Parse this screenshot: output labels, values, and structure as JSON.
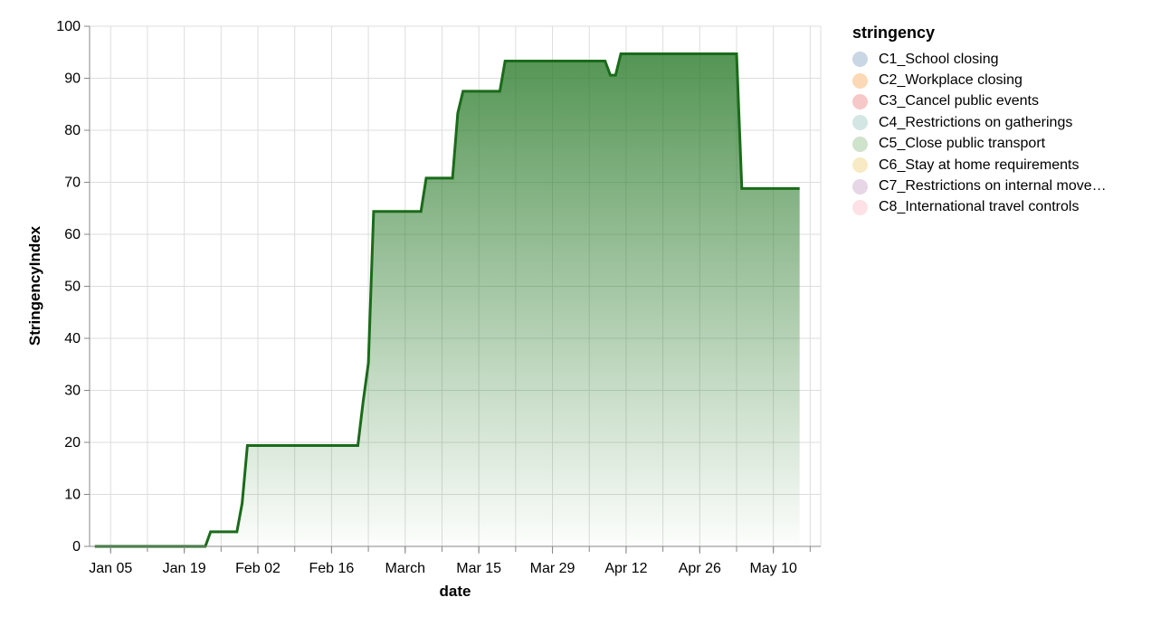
{
  "chart_data": {
    "type": "area",
    "xlabel": "date",
    "ylabel": "StringencyIndex",
    "ylim": [
      0,
      100
    ],
    "y_ticks": [
      0,
      10,
      20,
      30,
      40,
      50,
      60,
      70,
      80,
      90,
      100
    ],
    "x_range": [
      "2020-01-01",
      "2020-05-19"
    ],
    "x_ticks": [
      {
        "date": "2020-01-05",
        "label": "Jan 05"
      },
      {
        "date": "2020-01-19",
        "label": "Jan 19"
      },
      {
        "date": "2020-02-02",
        "label": "Feb 02"
      },
      {
        "date": "2020-02-16",
        "label": "Feb 16"
      },
      {
        "date": "2020-03-01",
        "label": "March"
      },
      {
        "date": "2020-03-15",
        "label": "Mar 15"
      },
      {
        "date": "2020-03-29",
        "label": "Mar 29"
      },
      {
        "date": "2020-04-12",
        "label": "Apr 12"
      },
      {
        "date": "2020-04-26",
        "label": "Apr 26"
      },
      {
        "date": "2020-05-10",
        "label": "May 10"
      }
    ],
    "grid": true,
    "line_color": "#1a6b1a",
    "fill_color": "#2e8b2e",
    "legend_position": "right",
    "series": [
      {
        "points": [
          [
            "2020-01-02",
            0
          ],
          [
            "2020-01-23",
            0
          ],
          [
            "2020-01-24",
            2.8
          ],
          [
            "2020-01-29",
            2.8
          ],
          [
            "2020-01-30",
            8.3
          ],
          [
            "2020-01-31",
            19.4
          ],
          [
            "2020-02-21",
            19.4
          ],
          [
            "2020-02-22",
            27.8
          ],
          [
            "2020-02-23",
            35.2
          ],
          [
            "2020-02-24",
            64.4
          ],
          [
            "2020-03-04",
            64.4
          ],
          [
            "2020-03-05",
            70.8
          ],
          [
            "2020-03-10",
            70.8
          ],
          [
            "2020-03-11",
            83.3
          ],
          [
            "2020-03-12",
            87.5
          ],
          [
            "2020-03-19",
            87.5
          ],
          [
            "2020-03-20",
            93.3
          ],
          [
            "2020-04-08",
            93.3
          ],
          [
            "2020-04-09",
            90.6
          ],
          [
            "2020-04-10",
            90.6
          ],
          [
            "2020-04-11",
            94.7
          ],
          [
            "2020-05-03",
            94.7
          ],
          [
            "2020-05-04",
            68.8
          ],
          [
            "2020-05-15",
            68.8
          ]
        ]
      }
    ]
  },
  "legend": {
    "title": "stringency",
    "items": [
      {
        "label": "C1_School closing",
        "color": "#c9d6e3"
      },
      {
        "label": "C2_Workplace closing",
        "color": "#fbd9b6"
      },
      {
        "label": "C3_Cancel public events",
        "color": "#f7c8c8"
      },
      {
        "label": "C4_Restrictions on gatherings",
        "color": "#d4e6e4"
      },
      {
        "label": "C5_Close public transport",
        "color": "#cfe2cb"
      },
      {
        "label": "C6_Stay at home requirements",
        "color": "#f7eac4"
      },
      {
        "label": "C7_Restrictions on internal move…",
        "color": "#e6d6e6"
      },
      {
        "label": "C8_International travel controls",
        "color": "#fde1e6"
      }
    ]
  }
}
